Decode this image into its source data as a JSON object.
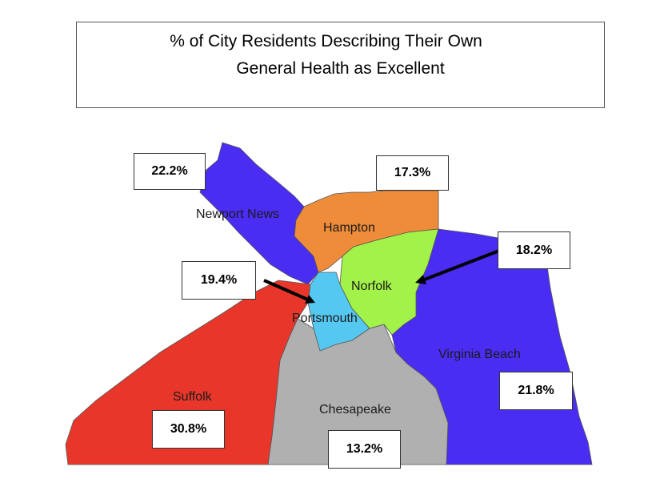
{
  "title": {
    "line1": "% of City Residents Describing Their Own",
    "line2": "General Health as Excellent"
  },
  "regions": [
    {
      "id": "newport-news",
      "name": "Newport News",
      "value": "22.2%",
      "color": "#4a2df2"
    },
    {
      "id": "hampton",
      "name": "Hampton",
      "value": "17.3%",
      "color": "#ef8c3a"
    },
    {
      "id": "norfolk",
      "name": "Norfolk",
      "value": "18.2%",
      "color": "#a3f24a"
    },
    {
      "id": "portsmouth",
      "name": "Portsmouth",
      "value": "19.4%",
      "color": "#55c8f2"
    },
    {
      "id": "suffolk",
      "name": "Suffolk",
      "value": "30.8%",
      "color": "#e8372a"
    },
    {
      "id": "chesapeake",
      "name": "Chesapeake",
      "value": "13.2%",
      "color": "#b0b0b0"
    },
    {
      "id": "virginia-beach",
      "name": "Virginia Beach",
      "value": "21.8%",
      "color": "#4a2df2"
    }
  ]
}
